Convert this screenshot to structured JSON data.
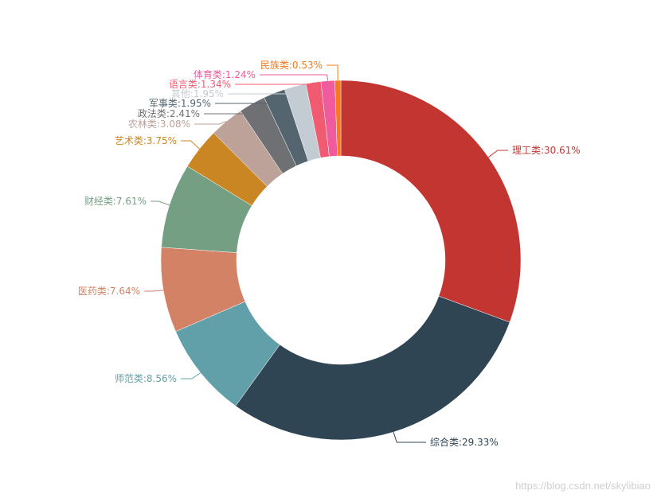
{
  "chart_data": {
    "type": "pie",
    "donut": true,
    "start": "top",
    "direction": "clockwise",
    "slices": [
      {
        "name": "理工类",
        "value": 30.61,
        "label": "理工类:30.61%",
        "color": "#c23531"
      },
      {
        "name": "综合类",
        "value": 29.33,
        "label": "综合类:29.33%",
        "color": "#2f4554"
      },
      {
        "name": "师范类",
        "value": 8.56,
        "label": "师范类:8.56%",
        "color": "#61a0a8"
      },
      {
        "name": "医药类",
        "value": 7.64,
        "label": "医药类:7.64%",
        "color": "#d48265"
      },
      {
        "name": "财经类",
        "value": 7.61,
        "label": "财经类:7.61%",
        "color": "#749f83"
      },
      {
        "name": "艺术类",
        "value": 3.75,
        "label": "艺术类:3.75%",
        "color": "#ca8622"
      },
      {
        "name": "农林类",
        "value": 3.08,
        "label": "农林类:3.08%",
        "color": "#bda29a"
      },
      {
        "name": "政法类",
        "value": 2.41,
        "label": "政法类:2.41%",
        "color": "#6e7074"
      },
      {
        "name": "军事类",
        "value": 1.95,
        "label": "军事类:1.95%",
        "color": "#546570"
      },
      {
        "name": "其他",
        "value": 1.95,
        "label": "其他:1.95%",
        "color": "#c4ccd3"
      },
      {
        "name": "语言类",
        "value": 1.34,
        "label": "语言类:1.34%",
        "color": "#f05b72"
      },
      {
        "name": "体育类",
        "value": 1.24,
        "label": "体育类:1.24%",
        "color": "#ef5b9c"
      },
      {
        "name": "民族类",
        "value": 0.53,
        "label": "民族类:0.53%",
        "color": "#f47920"
      }
    ]
  },
  "watermark": "https://blog.csdn.net/skylibiao"
}
